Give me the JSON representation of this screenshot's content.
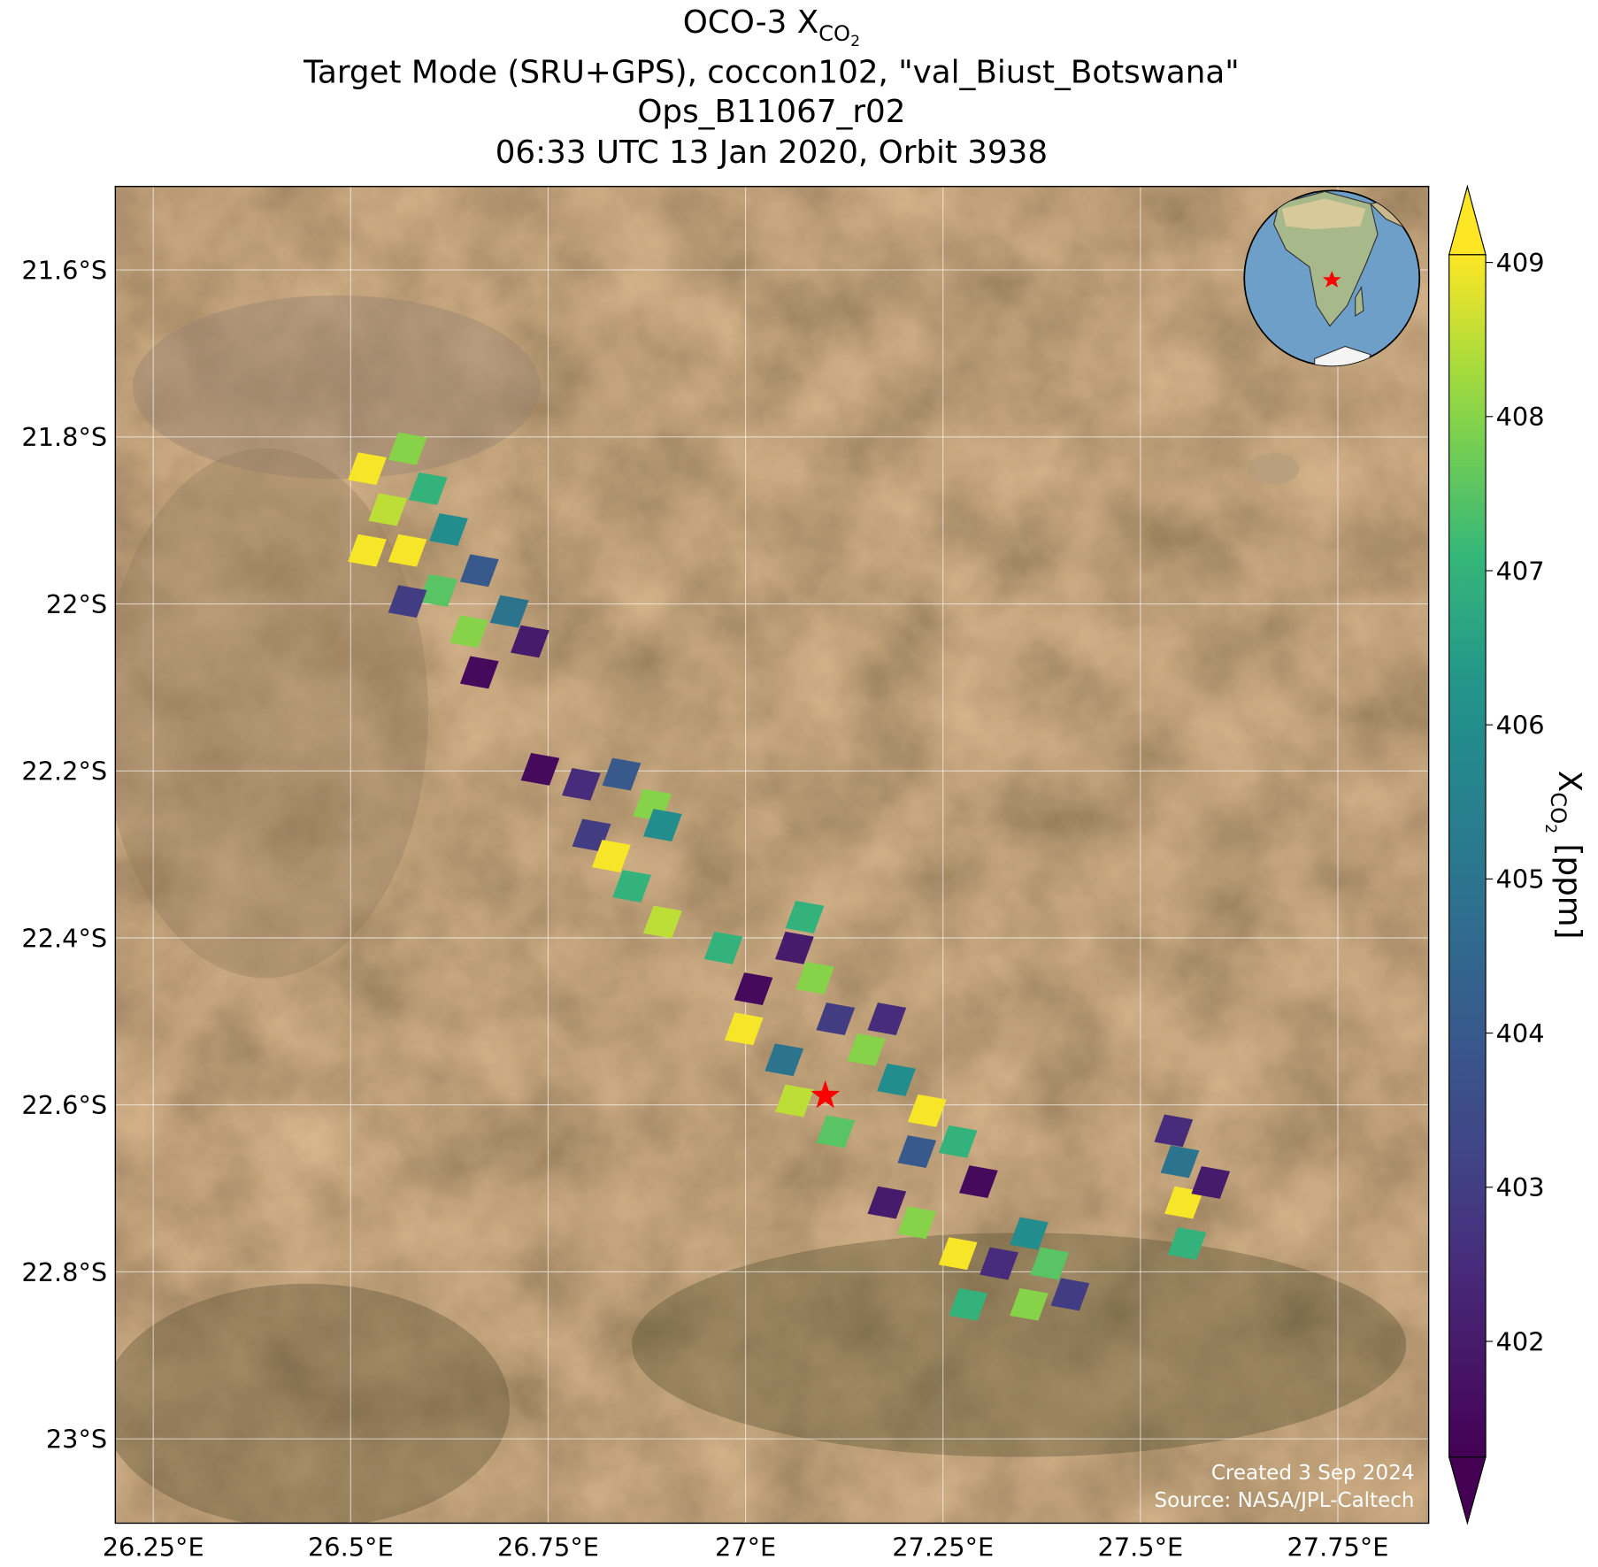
{
  "chart_data": {
    "type": "map-scatter",
    "title": [
      "OCO-3 X",
      "CO",
      "2"
    ],
    "subtitles": [
      "Target Mode (SRU+GPS), coccon102, \"val_Biust_Botswana\"",
      "Ops_B11067_r02",
      "06:33 UTC 13 Jan 2020, Orbit 3938"
    ],
    "xlim": [
      26.202,
      27.865
    ],
    "ylim": [
      -23.101,
      -21.5
    ],
    "xticks": [
      {
        "value": 26.25,
        "label": "26.25°E"
      },
      {
        "value": 26.5,
        "label": "26.5°E"
      },
      {
        "value": 26.75,
        "label": "26.75°E"
      },
      {
        "value": 27.0,
        "label": "27°E"
      },
      {
        "value": 27.25,
        "label": "27.25°E"
      },
      {
        "value": 27.5,
        "label": "27.5°E"
      },
      {
        "value": 27.75,
        "label": "27.75°E"
      }
    ],
    "yticks": [
      {
        "value": -21.6,
        "label": "21.6°S"
      },
      {
        "value": -21.8,
        "label": "21.8°S"
      },
      {
        "value": -22.0,
        "label": "22°S"
      },
      {
        "value": -22.2,
        "label": "22.2°S"
      },
      {
        "value": -22.4,
        "label": "22.4°S"
      },
      {
        "value": -22.6,
        "label": "22.6°S"
      },
      {
        "value": -22.8,
        "label": "22.8°S"
      },
      {
        "value": -23.0,
        "label": "23°S"
      }
    ],
    "grid": true,
    "x": [
      26.521,
      26.572,
      26.547,
      26.598,
      26.572,
      26.624,
      26.611,
      26.663,
      26.65,
      26.701,
      26.663,
      26.727,
      26.572,
      26.521,
      26.74,
      26.792,
      26.843,
      26.882,
      26.895,
      26.805,
      26.83,
      26.856,
      26.895,
      26.972,
      27.01,
      27.062,
      27.088,
      26.998,
      27.049,
      27.114,
      27.153,
      27.191,
      27.062,
      27.114,
      27.23,
      27.217,
      27.269,
      27.295,
      27.179,
      27.075,
      27.179,
      27.217,
      27.269,
      27.321,
      27.359,
      27.385,
      27.282,
      27.359,
      27.411,
      27.542,
      27.55,
      27.555,
      27.559,
      27.589
    ],
    "y": [
      -21.838,
      -21.814,
      -21.887,
      -21.862,
      -21.936,
      -21.911,
      -21.984,
      -21.96,
      -22.033,
      -22.009,
      -22.082,
      -22.045,
      -21.997,
      -21.936,
      -22.198,
      -22.216,
      -22.204,
      -22.241,
      -22.265,
      -22.277,
      -22.302,
      -22.338,
      -22.381,
      -22.412,
      -22.461,
      -22.412,
      -22.448,
      -22.509,
      -22.546,
      -22.497,
      -22.534,
      -22.57,
      -22.595,
      -22.632,
      -22.607,
      -22.656,
      -22.644,
      -22.692,
      -22.497,
      -22.375,
      -22.717,
      -22.741,
      -22.778,
      -22.79,
      -22.754,
      -22.79,
      -22.839,
      -22.839,
      -22.827,
      -22.631,
      -22.668,
      -22.717,
      -22.766,
      -22.693
    ],
    "values": [
      409,
      408,
      408.5,
      407,
      409,
      406,
      407.5,
      404,
      408,
      405,
      401.5,
      402,
      403,
      409,
      401.5,
      402.5,
      404,
      408,
      406,
      403,
      409,
      407,
      408.5,
      407,
      401.5,
      402,
      408,
      409,
      405,
      403,
      408,
      406,
      408.5,
      407.5,
      409,
      404,
      407,
      401.5,
      402.5,
      407,
      402,
      408,
      409,
      402.5,
      406,
      407.5,
      407,
      408,
      403,
      402.5,
      405,
      409,
      407,
      402
    ],
    "colormap": "viridis",
    "clim": [
      401.25,
      409.05
    ],
    "colorbar_ticks": [
      402,
      403,
      404,
      405,
      406,
      407,
      408,
      409
    ],
    "colorbar_label": [
      "X",
      "CO",
      "2",
      " [ppm]"
    ],
    "target": {
      "lon": 27.101,
      "lat": -22.589,
      "color": "#ff0000"
    },
    "credits": [
      "Created 3 Sep 2024",
      "Source: NASA/JPL-Caltech"
    ]
  }
}
